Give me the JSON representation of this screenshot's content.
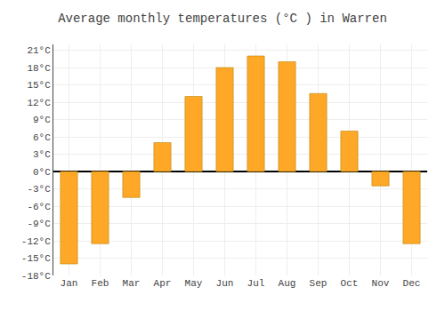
{
  "chart_data": {
    "type": "bar",
    "title": "Average monthly temperatures (°C ) in Warren",
    "categories": [
      "Jan",
      "Feb",
      "Mar",
      "Apr",
      "May",
      "Jun",
      "Jul",
      "Aug",
      "Sep",
      "Oct",
      "Nov",
      "Dec"
    ],
    "values": [
      -16,
      -12.5,
      -4.5,
      5,
      13,
      18,
      20,
      19,
      13.5,
      7,
      -2.5,
      -12.5
    ],
    "color": "#FFA726",
    "ylim": [
      -18,
      22
    ],
    "yticks": [
      {
        "value": -18,
        "label": "-18°C"
      },
      {
        "value": -15,
        "label": "-15°C"
      },
      {
        "value": -12,
        "label": "-12°C"
      },
      {
        "value": -9,
        "label": "-9°C"
      },
      {
        "value": -6,
        "label": "-6°C"
      },
      {
        "value": -3,
        "label": "-3°C"
      },
      {
        "value": 0,
        "label": "0°C"
      },
      {
        "value": 3,
        "label": "3°C"
      },
      {
        "value": 6,
        "label": "6°C"
      },
      {
        "value": 9,
        "label": "9°C"
      },
      {
        "value": 12,
        "label": "12°C"
      },
      {
        "value": 15,
        "label": "15°C"
      },
      {
        "value": 18,
        "label": "18°C"
      },
      {
        "value": 21,
        "label": "21°C"
      }
    ],
    "grid": true
  }
}
